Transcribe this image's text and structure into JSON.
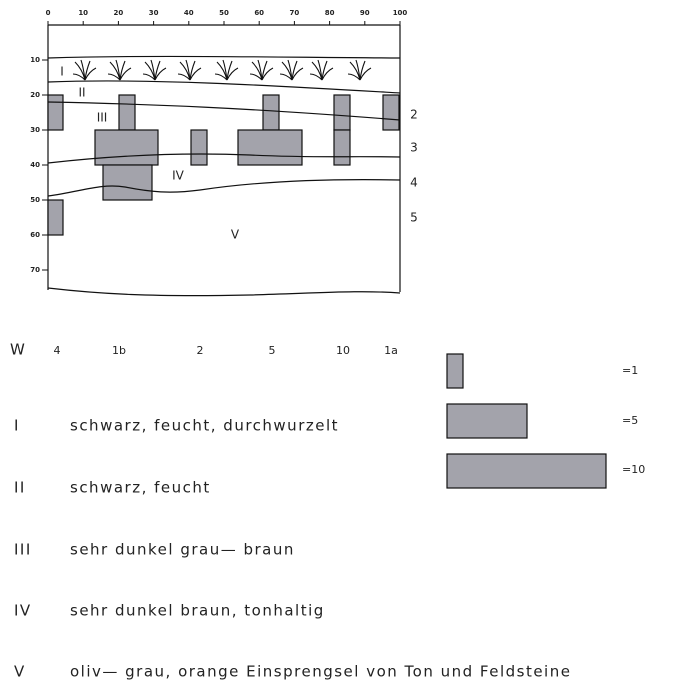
{
  "profile": {
    "x_ticks": [
      0,
      10,
      20,
      30,
      40,
      50,
      60,
      70,
      80,
      90,
      100
    ],
    "depth_ticks": [
      10,
      20,
      30,
      40,
      50,
      60,
      70
    ],
    "horizon_labels": [
      "I",
      "II",
      "III",
      "IV",
      "V"
    ],
    "boundary_labels": [
      "2",
      "3",
      "4",
      "5"
    ]
  },
  "scale_row": {
    "label": "W",
    "values": [
      "4",
      "1b",
      "2",
      "5",
      "10",
      "1a"
    ]
  },
  "legend": {
    "items": [
      {
        "label": "=1"
      },
      {
        "label": "=5"
      },
      {
        "label": "=10"
      }
    ]
  },
  "horizons": [
    {
      "numeral": "I",
      "description": "schwarz, feucht, durchwurzelt"
    },
    {
      "numeral": "II",
      "description": "schwarz, feucht"
    },
    {
      "numeral": "III",
      "description": "sehr dunkel grau— braun"
    },
    {
      "numeral": "IV",
      "description": "sehr dunkel braun, tonhaltig"
    },
    {
      "numeral": "V",
      "description": "oliv— grau, orange Einsprengsel von Ton und Feldsteine"
    }
  ]
}
